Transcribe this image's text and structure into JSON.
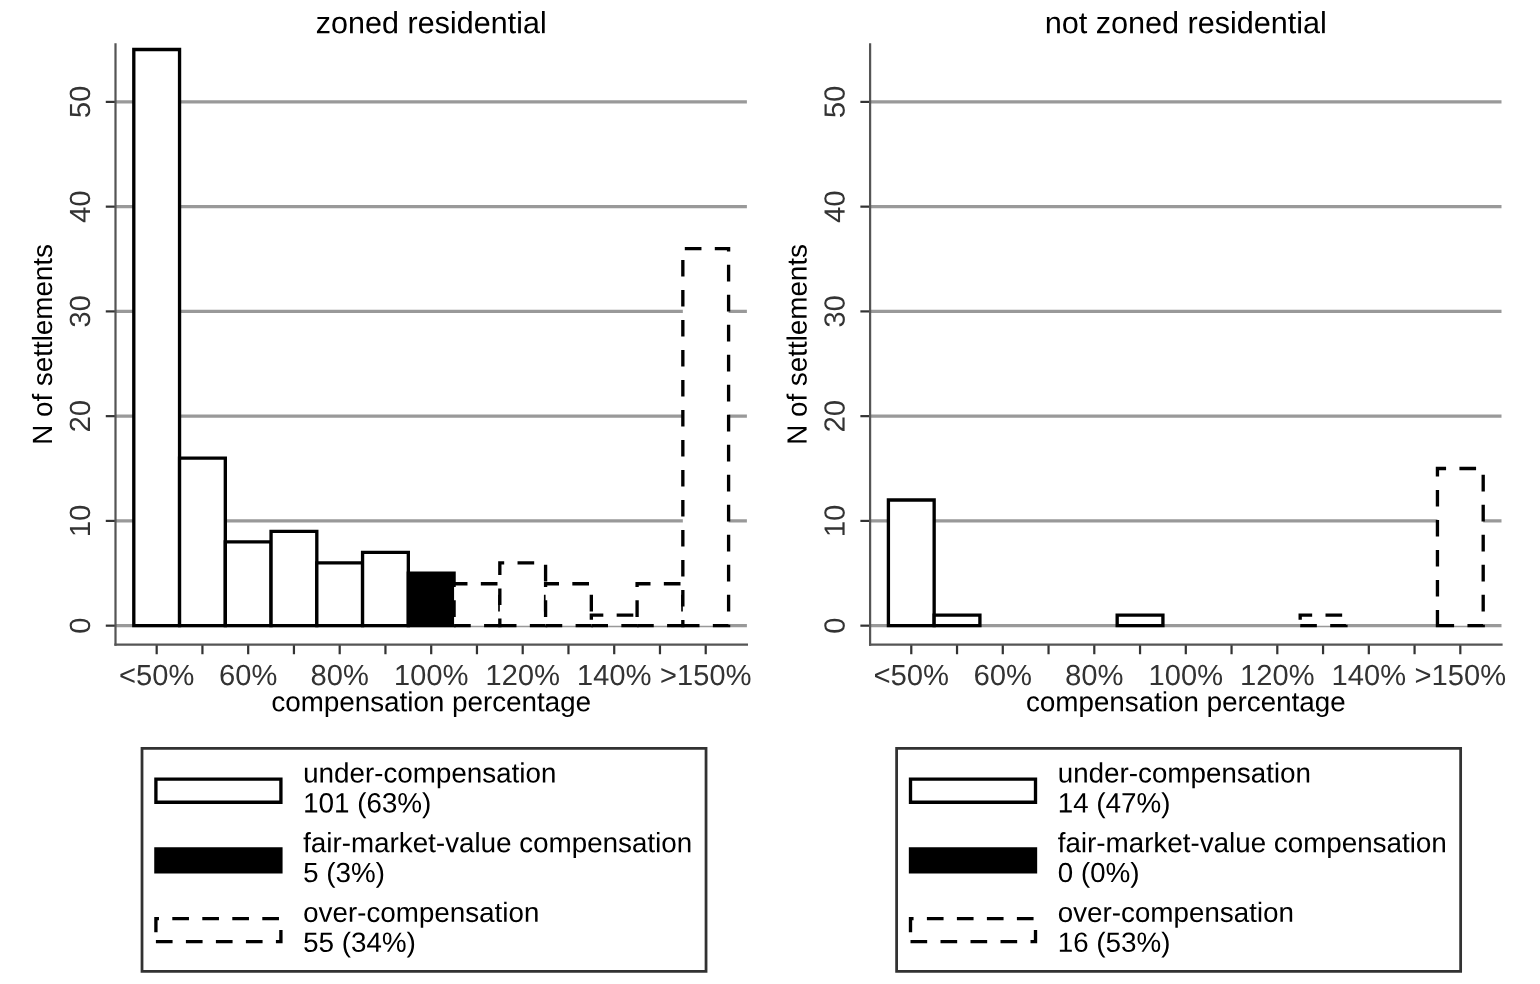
{
  "chart_data": [
    {
      "type": "bar",
      "title": "zoned residential",
      "xlabel": "compensation percentage",
      "ylabel": "N of settlements",
      "x": [
        40,
        50,
        60,
        70,
        80,
        90,
        100,
        110,
        120,
        130,
        140,
        150,
        160
      ],
      "series": [
        {
          "name": "under-compensation\n101 (63%)",
          "color": "#ffffff",
          "line_style": "solid",
          "values": [
            55,
            16,
            8,
            9,
            6,
            7,
            null,
            null,
            null,
            null,
            null,
            null,
            null
          ]
        },
        {
          "name": "fair-market-value compensation\n5 (3%)",
          "color": "#000000",
          "line_style": "solid",
          "values": [
            null,
            null,
            null,
            null,
            null,
            null,
            5,
            null,
            null,
            null,
            null,
            null,
            null
          ]
        },
        {
          "name": "over-compensation\n55 (34%)",
          "color": "#ffffff",
          "line_style": "dashed",
          "values": [
            null,
            null,
            null,
            null,
            null,
            null,
            null,
            4,
            6,
            4,
            1,
            4,
            36
          ]
        }
      ],
      "xlim": [
        31,
        169
      ],
      "ylim": [
        -1.8,
        55.5
      ],
      "xticks": [
        {
          "value": 40,
          "label": "<50%"
        },
        {
          "value": 50,
          "label": null
        },
        {
          "value": 60,
          "label": "60%"
        },
        {
          "value": 70,
          "label": null
        },
        {
          "value": 80,
          "label": "80%"
        },
        {
          "value": 90,
          "label": null
        },
        {
          "value": 100,
          "label": "100%"
        },
        {
          "value": 110,
          "label": null
        },
        {
          "value": 120,
          "label": "120%"
        },
        {
          "value": 130,
          "label": null
        },
        {
          "value": 140,
          "label": "140%"
        },
        {
          "value": 150,
          "label": null
        },
        {
          "value": 160,
          "label": ">150%"
        }
      ],
      "yticks": [
        0,
        10,
        20,
        30,
        40,
        50
      ],
      "grid": "y",
      "legend": "bottom"
    },
    {
      "type": "bar",
      "title": "not zoned residential",
      "xlabel": "compensation percentage",
      "ylabel": "N of settlements",
      "x": [
        40,
        50,
        60,
        70,
        80,
        90,
        100,
        110,
        120,
        130,
        140,
        150,
        160
      ],
      "series": [
        {
          "name": "under-compensation\n14 (47%)",
          "color": "#ffffff",
          "line_style": "solid",
          "values": [
            12,
            1,
            null,
            null,
            null,
            1,
            null,
            null,
            null,
            null,
            null,
            null,
            null
          ]
        },
        {
          "name": "fair-market-value compensation\n0 (0%)",
          "color": "#000000",
          "line_style": "solid",
          "values": [
            null,
            null,
            null,
            null,
            null,
            null,
            null,
            null,
            null,
            null,
            null,
            null,
            null
          ]
        },
        {
          "name": "over-compensation\n16 (53%)",
          "color": "#ffffff",
          "line_style": "dashed",
          "values": [
            null,
            null,
            null,
            null,
            null,
            null,
            null,
            null,
            null,
            1,
            null,
            null,
            15
          ]
        }
      ],
      "xlim": [
        31,
        169
      ],
      "ylim": [
        -1.8,
        55.5
      ],
      "xticks": [
        {
          "value": 40,
          "label": "<50%"
        },
        {
          "value": 50,
          "label": null
        },
        {
          "value": 60,
          "label": "60%"
        },
        {
          "value": 70,
          "label": null
        },
        {
          "value": 80,
          "label": "80%"
        },
        {
          "value": 90,
          "label": null
        },
        {
          "value": 100,
          "label": "100%"
        },
        {
          "value": 110,
          "label": null
        },
        {
          "value": 120,
          "label": "120%"
        },
        {
          "value": 130,
          "label": null
        },
        {
          "value": 140,
          "label": "140%"
        },
        {
          "value": 150,
          "label": null
        },
        {
          "value": 160,
          "label": ">150%"
        }
      ],
      "yticks": [
        0,
        10,
        20,
        30,
        40,
        50
      ],
      "grid": "y",
      "legend": "bottom"
    }
  ]
}
